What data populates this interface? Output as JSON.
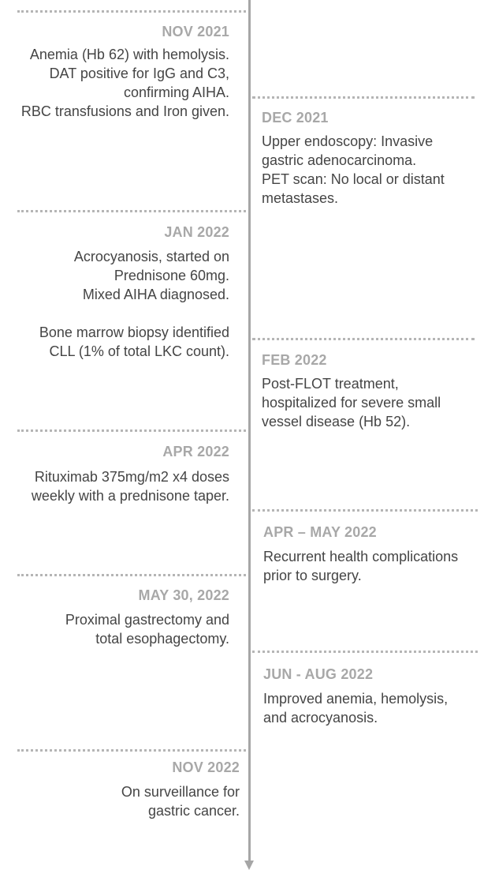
{
  "events": [
    {
      "side": "left",
      "date": "NOV 2021",
      "lines": [
        "Anemia (Hb 62) with hemolysis.",
        "DAT positive for IgG and C3,",
        "confirming AIHA.",
        "RBC transfusions and Iron given."
      ]
    },
    {
      "side": "right",
      "date": "DEC 2021",
      "lines": [
        "Upper endoscopy: Invasive",
        "gastric adenocarcinoma.",
        "PET scan: No local or distant",
        "metastases."
      ]
    },
    {
      "side": "left",
      "date": "JAN 2022",
      "lines": [
        "Acrocyanosis, started on",
        "Prednisone 60mg.",
        "Mixed AIHA diagnosed.",
        "",
        "Bone marrow biopsy identified",
        "CLL (1% of total LKC count)."
      ]
    },
    {
      "side": "right",
      "date": "FEB 2022",
      "lines": [
        "Post-FLOT treatment,",
        "hospitalized for severe small",
        "vessel disease (Hb 52)."
      ]
    },
    {
      "side": "left",
      "date": "APR 2022",
      "lines": [
        "Rituximab 375mg/m2 x4 doses",
        "weekly with a prednisone taper."
      ]
    },
    {
      "side": "right",
      "date": "APR – MAY 2022",
      "lines": [
        "Recurrent health complications",
        "prior to surgery."
      ]
    },
    {
      "side": "left",
      "date": "MAY 30, 2022",
      "lines": [
        "Proximal gastrectomy and",
        "total esophagectomy."
      ]
    },
    {
      "side": "right",
      "date": "JUN - AUG 2022",
      "lines": [
        "Improved anemia, hemolysis,",
        "and acrocyanosis."
      ]
    },
    {
      "side": "left",
      "date": "NOV 2022",
      "lines": [
        "On surveillance for",
        "gastric cancer."
      ]
    }
  ]
}
